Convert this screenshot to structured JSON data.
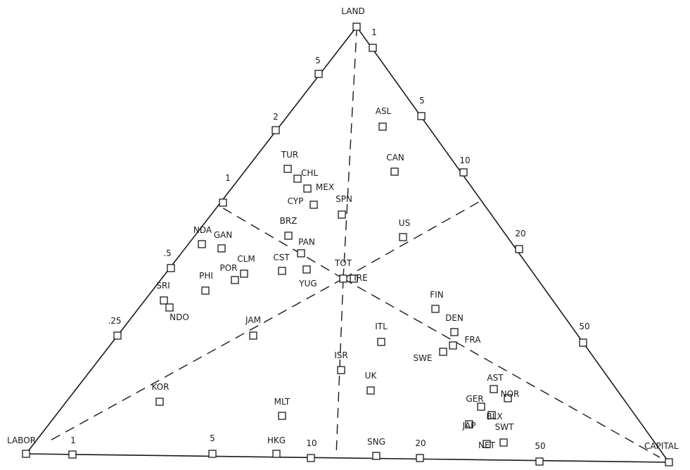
{
  "chart_data": {
    "type": "scatter",
    "vertices": {
      "land": "LAND",
      "labor": "LABOR",
      "capital": "CAPITAL"
    },
    "edge_ticks": {
      "land_labor": [
        "5",
        "2",
        "1",
        ".5",
        ".25"
      ],
      "land_capital": [
        "1",
        "5",
        "10",
        "20",
        "50"
      ],
      "labor_capital": [
        "1",
        "5",
        "10",
        "20",
        "50"
      ]
    },
    "center_label": "TOT",
    "countries": [
      {
        "code": "ASL"
      },
      {
        "code": "CAN"
      },
      {
        "code": "TUR"
      },
      {
        "code": "CHL"
      },
      {
        "code": "MEX"
      },
      {
        "code": "CYP"
      },
      {
        "code": "SPN"
      },
      {
        "code": "US"
      },
      {
        "code": "BRZ"
      },
      {
        "code": "PAN"
      },
      {
        "code": "NDA"
      },
      {
        "code": "GAN"
      },
      {
        "code": "CST"
      },
      {
        "code": "CLM"
      },
      {
        "code": "POR"
      },
      {
        "code": "PHI"
      },
      {
        "code": "YUG"
      },
      {
        "code": "IRE"
      },
      {
        "code": "SRI"
      },
      {
        "code": "NDO"
      },
      {
        "code": "JAM"
      },
      {
        "code": "FIN"
      },
      {
        "code": "DEN"
      },
      {
        "code": "ITL"
      },
      {
        "code": "FRA"
      },
      {
        "code": "SWE"
      },
      {
        "code": "ISR"
      },
      {
        "code": "UK"
      },
      {
        "code": "KOR"
      },
      {
        "code": "MLT"
      },
      {
        "code": "AST"
      },
      {
        "code": "NOR"
      },
      {
        "code": "GER"
      },
      {
        "code": "BLX"
      },
      {
        "code": "JAP"
      },
      {
        "code": "SWT"
      },
      {
        "code": "NET"
      },
      {
        "code": "HKG"
      },
      {
        "code": "SNG"
      }
    ]
  }
}
